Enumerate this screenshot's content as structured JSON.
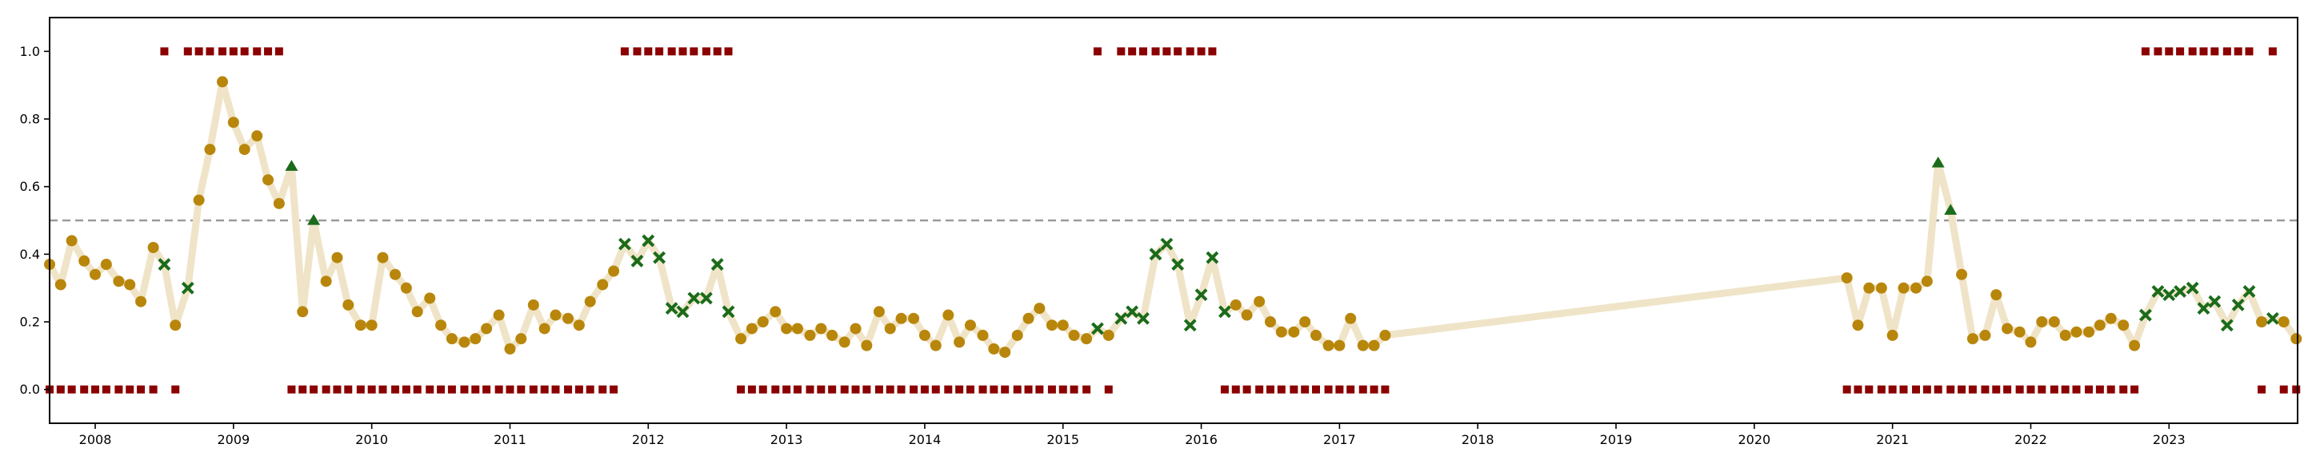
{
  "chart_data": {
    "type": "line",
    "title": "",
    "xlabel": "",
    "ylabel": "",
    "xlim": [
      2007.67,
      2023.93
    ],
    "ylim": [
      -0.1,
      1.1
    ],
    "x_ticks": [
      2008,
      2009,
      2010,
      2011,
      2012,
      2013,
      2014,
      2015,
      2016,
      2017,
      2018,
      2019,
      2020,
      2021,
      2022,
      2023
    ],
    "x_tick_labels": [
      "2008",
      "2009",
      "2010",
      "2011",
      "2012",
      "2013",
      "2014",
      "2015",
      "2016",
      "2017",
      "2018",
      "2019",
      "2020",
      "2021",
      "2022",
      "2023"
    ],
    "y_ticks": [
      0.0,
      0.2,
      0.4,
      0.6,
      0.8,
      1.0
    ],
    "y_tick_labels": [
      "0.0",
      "0.2",
      "0.4",
      "0.6",
      "0.8",
      "1.0"
    ],
    "threshold": 0.5,
    "grid": false,
    "legend": "none",
    "colors": {
      "line": "#f0e4c8",
      "normal_marker": "#b8860b",
      "cross_marker": "#1a6b1a",
      "triangle_marker": "#1a6b1a",
      "regime_marker": "#8b0000",
      "threshold": "#999999"
    },
    "series": [
      {
        "x": [
          2007.67,
          2007.75,
          2007.83,
          2007.92,
          2008.0,
          2008.08,
          2008.17,
          2008.25,
          2008.33,
          2008.42,
          2008.5,
          2008.58,
          2008.67,
          2008.75,
          2008.83,
          2008.92,
          2009.0,
          2009.08,
          2009.17,
          2009.25,
          2009.33,
          2009.42,
          2009.5,
          2009.58,
          2009.67,
          2009.75,
          2009.83,
          2009.92,
          2010.0,
          2010.08,
          2010.17,
          2010.25,
          2010.33,
          2010.42,
          2010.5,
          2010.58,
          2010.67,
          2010.75,
          2010.83,
          2010.92,
          2011.0,
          2011.08,
          2011.17,
          2011.25,
          2011.33,
          2011.42,
          2011.5,
          2011.58,
          2011.67,
          2011.75,
          2011.83,
          2011.92,
          2012.0,
          2012.08,
          2012.17,
          2012.25,
          2012.33,
          2012.42,
          2012.5,
          2012.58,
          2012.67,
          2012.75,
          2012.83,
          2012.92,
          2013.0,
          2013.08,
          2013.17,
          2013.25,
          2013.33,
          2013.42,
          2013.5,
          2013.58,
          2013.67,
          2013.75,
          2013.83,
          2013.92,
          2014.0,
          2014.08,
          2014.17,
          2014.25,
          2014.33,
          2014.42,
          2014.5,
          2014.58,
          2014.67,
          2014.75,
          2014.83,
          2014.92,
          2015.0,
          2015.08,
          2015.17,
          2015.25,
          2015.33,
          2015.42,
          2015.5,
          2015.58,
          2015.67,
          2015.75,
          2015.83,
          2015.92,
          2016.0,
          2016.08,
          2016.17,
          2016.25,
          2016.33,
          2016.42,
          2016.5,
          2016.58,
          2016.67,
          2016.75,
          2016.83,
          2016.92,
          2017.0,
          2017.08,
          2017.17,
          2017.25,
          2017.33,
          2020.67,
          2020.75,
          2020.83,
          2020.92,
          2021.0,
          2021.08,
          2021.17,
          2021.25,
          2021.33,
          2021.42,
          2021.5,
          2021.58,
          2021.67,
          2021.75,
          2021.83,
          2021.92,
          2022.0,
          2022.08,
          2022.17,
          2022.25,
          2022.33,
          2022.42,
          2022.5,
          2022.58,
          2022.67,
          2022.75,
          2022.83,
          2022.92,
          2023.0,
          2023.08,
          2023.17,
          2023.25,
          2023.33,
          2023.42,
          2023.5,
          2023.58,
          2023.67,
          2023.75,
          2023.83,
          2023.92
        ],
        "y": [
          0.37,
          0.31,
          0.44,
          0.38,
          0.34,
          0.37,
          0.32,
          0.31,
          0.26,
          0.42,
          0.37,
          0.19,
          0.3,
          0.56,
          0.71,
          0.91,
          0.79,
          0.71,
          0.75,
          0.62,
          0.55,
          0.66,
          0.23,
          0.5,
          0.32,
          0.39,
          0.25,
          0.19,
          0.19,
          0.39,
          0.34,
          0.3,
          0.23,
          0.27,
          0.19,
          0.15,
          0.14,
          0.15,
          0.18,
          0.22,
          0.12,
          0.15,
          0.25,
          0.18,
          0.22,
          0.21,
          0.19,
          0.26,
          0.31,
          0.35,
          0.43,
          0.38,
          0.44,
          0.39,
          0.24,
          0.23,
          0.27,
          0.27,
          0.37,
          0.23,
          0.15,
          0.18,
          0.2,
          0.23,
          0.18,
          0.18,
          0.16,
          0.18,
          0.16,
          0.14,
          0.18,
          0.13,
          0.23,
          0.18,
          0.21,
          0.21,
          0.16,
          0.13,
          0.22,
          0.14,
          0.19,
          0.16,
          0.12,
          0.11,
          0.16,
          0.21,
          0.24,
          0.19,
          0.19,
          0.16,
          0.15,
          0.18,
          0.16,
          0.21,
          0.23,
          0.21,
          0.4,
          0.43,
          0.37,
          0.19,
          0.28,
          0.39,
          0.23,
          0.25,
          0.22,
          0.26,
          0.2,
          0.17,
          0.17,
          0.2,
          0.16,
          0.13,
          0.13,
          0.21,
          0.13,
          0.13,
          0.16,
          0.33,
          0.19,
          0.3,
          0.3,
          0.16,
          0.3,
          0.3,
          0.32,
          0.67,
          0.53,
          0.34,
          0.15,
          0.16,
          0.28,
          0.18,
          0.17,
          0.14,
          0.2,
          0.2,
          0.16,
          0.17,
          0.17,
          0.19,
          0.21,
          0.19,
          0.13,
          0.22,
          0.29,
          0.28,
          0.29,
          0.3,
          0.24,
          0.26,
          0.19,
          0.25,
          0.29,
          0.2,
          0.21,
          0.2,
          0.15
        ],
        "marker": [
          "circle",
          "circle",
          "circle",
          "circle",
          "circle",
          "circle",
          "circle",
          "circle",
          "circle",
          "circle",
          "cross",
          "circle",
          "cross",
          "circle",
          "circle",
          "circle",
          "circle",
          "circle",
          "circle",
          "circle",
          "circle",
          "triangle",
          "circle",
          "triangle",
          "circle",
          "circle",
          "circle",
          "circle",
          "circle",
          "circle",
          "circle",
          "circle",
          "circle",
          "circle",
          "circle",
          "circle",
          "circle",
          "circle",
          "circle",
          "circle",
          "circle",
          "circle",
          "circle",
          "circle",
          "circle",
          "circle",
          "circle",
          "circle",
          "circle",
          "circle",
          "cross",
          "cross",
          "cross",
          "cross",
          "cross",
          "cross",
          "cross",
          "cross",
          "cross",
          "cross",
          "circle",
          "circle",
          "circle",
          "circle",
          "circle",
          "circle",
          "circle",
          "circle",
          "circle",
          "circle",
          "circle",
          "circle",
          "circle",
          "circle",
          "circle",
          "circle",
          "circle",
          "circle",
          "circle",
          "circle",
          "circle",
          "circle",
          "circle",
          "circle",
          "circle",
          "circle",
          "circle",
          "circle",
          "circle",
          "circle",
          "circle",
          "cross",
          "circle",
          "cross",
          "cross",
          "cross",
          "cross",
          "cross",
          "cross",
          "cross",
          "cross",
          "cross",
          "cross",
          "circle",
          "circle",
          "circle",
          "circle",
          "circle",
          "circle",
          "circle",
          "circle",
          "circle",
          "circle",
          "circle",
          "circle",
          "circle",
          "circle",
          "circle",
          "circle",
          "circle",
          "circle",
          "circle",
          "circle",
          "circle",
          "circle",
          "triangle",
          "triangle",
          "circle",
          "circle",
          "circle",
          "circle",
          "circle",
          "circle",
          "circle",
          "circle",
          "circle",
          "circle",
          "circle",
          "circle",
          "circle",
          "circle",
          "circle",
          "circle",
          "cross",
          "cross",
          "cross",
          "cross",
          "cross",
          "cross",
          "cross",
          "cross",
          "cross",
          "cross",
          "circle",
          "cross",
          "circle",
          "circle"
        ]
      },
      {
        "type": "scatter",
        "marker": "square",
        "x": [
          2007.67,
          2007.75,
          2007.83,
          2007.92,
          2008.0,
          2008.08,
          2008.17,
          2008.25,
          2008.33,
          2008.42,
          2008.5,
          2008.58,
          2008.67,
          2008.75,
          2008.83,
          2008.92,
          2009.0,
          2009.08,
          2009.17,
          2009.25,
          2009.33,
          2009.42,
          2009.5,
          2009.58,
          2009.67,
          2009.75,
          2009.83,
          2009.92,
          2010.0,
          2010.08,
          2010.17,
          2010.25,
          2010.33,
          2010.42,
          2010.5,
          2010.58,
          2010.67,
          2010.75,
          2010.83,
          2010.92,
          2011.0,
          2011.08,
          2011.17,
          2011.25,
          2011.33,
          2011.42,
          2011.5,
          2011.58,
          2011.67,
          2011.75,
          2011.83,
          2011.92,
          2012.0,
          2012.08,
          2012.17,
          2012.25,
          2012.33,
          2012.42,
          2012.5,
          2012.58,
          2012.67,
          2012.75,
          2012.83,
          2012.92,
          2013.0,
          2013.08,
          2013.17,
          2013.25,
          2013.33,
          2013.42,
          2013.5,
          2013.58,
          2013.67,
          2013.75,
          2013.83,
          2013.92,
          2014.0,
          2014.08,
          2014.17,
          2014.25,
          2014.33,
          2014.42,
          2014.5,
          2014.58,
          2014.67,
          2014.75,
          2014.83,
          2014.92,
          2015.0,
          2015.08,
          2015.17,
          2015.25,
          2015.33,
          2015.42,
          2015.5,
          2015.58,
          2015.67,
          2015.75,
          2015.83,
          2015.92,
          2016.0,
          2016.08,
          2016.17,
          2016.25,
          2016.33,
          2016.42,
          2016.5,
          2016.58,
          2016.67,
          2016.75,
          2016.83,
          2016.92,
          2017.0,
          2017.08,
          2017.17,
          2017.25,
          2017.33,
          2020.67,
          2020.75,
          2020.83,
          2020.92,
          2021.0,
          2021.08,
          2021.17,
          2021.25,
          2021.33,
          2021.42,
          2021.5,
          2021.58,
          2021.67,
          2021.75,
          2021.83,
          2021.92,
          2022.0,
          2022.08,
          2022.17,
          2022.25,
          2022.33,
          2022.42,
          2022.5,
          2022.58,
          2022.67,
          2022.75,
          2022.83,
          2022.92,
          2023.0,
          2023.08,
          2023.17,
          2023.25,
          2023.33,
          2023.42,
          2023.5,
          2023.58,
          2023.67,
          2023.75,
          2023.83,
          2023.92
        ],
        "y": [
          0,
          0,
          0,
          0,
          0,
          0,
          0,
          0,
          0,
          0,
          1,
          0,
          1,
          1,
          1,
          1,
          1,
          1,
          1,
          1,
          1,
          0,
          0,
          0,
          0,
          0,
          0,
          0,
          0,
          0,
          0,
          0,
          0,
          0,
          0,
          0,
          0,
          0,
          0,
          0,
          0,
          0,
          0,
          0,
          0,
          0,
          0,
          0,
          0,
          0,
          1,
          1,
          1,
          1,
          1,
          1,
          1,
          1,
          1,
          1,
          0,
          0,
          0,
          0,
          0,
          0,
          0,
          0,
          0,
          0,
          0,
          0,
          0,
          0,
          0,
          0,
          0,
          0,
          0,
          0,
          0,
          0,
          0,
          0,
          0,
          0,
          0,
          0,
          0,
          0,
          0,
          1,
          0,
          1,
          1,
          1,
          1,
          1,
          1,
          1,
          1,
          1,
          0,
          0,
          0,
          0,
          0,
          0,
          0,
          0,
          0,
          0,
          0,
          0,
          0,
          0,
          0,
          0,
          0,
          0,
          0,
          0,
          0,
          0,
          0,
          0,
          0,
          0,
          0,
          0,
          0,
          0,
          0,
          0,
          0,
          0,
          0,
          0,
          0,
          0,
          0,
          0,
          0,
          1,
          1,
          1,
          1,
          1,
          1,
          1,
          1,
          1,
          1,
          0,
          1,
          0,
          0
        ]
      }
    ]
  }
}
